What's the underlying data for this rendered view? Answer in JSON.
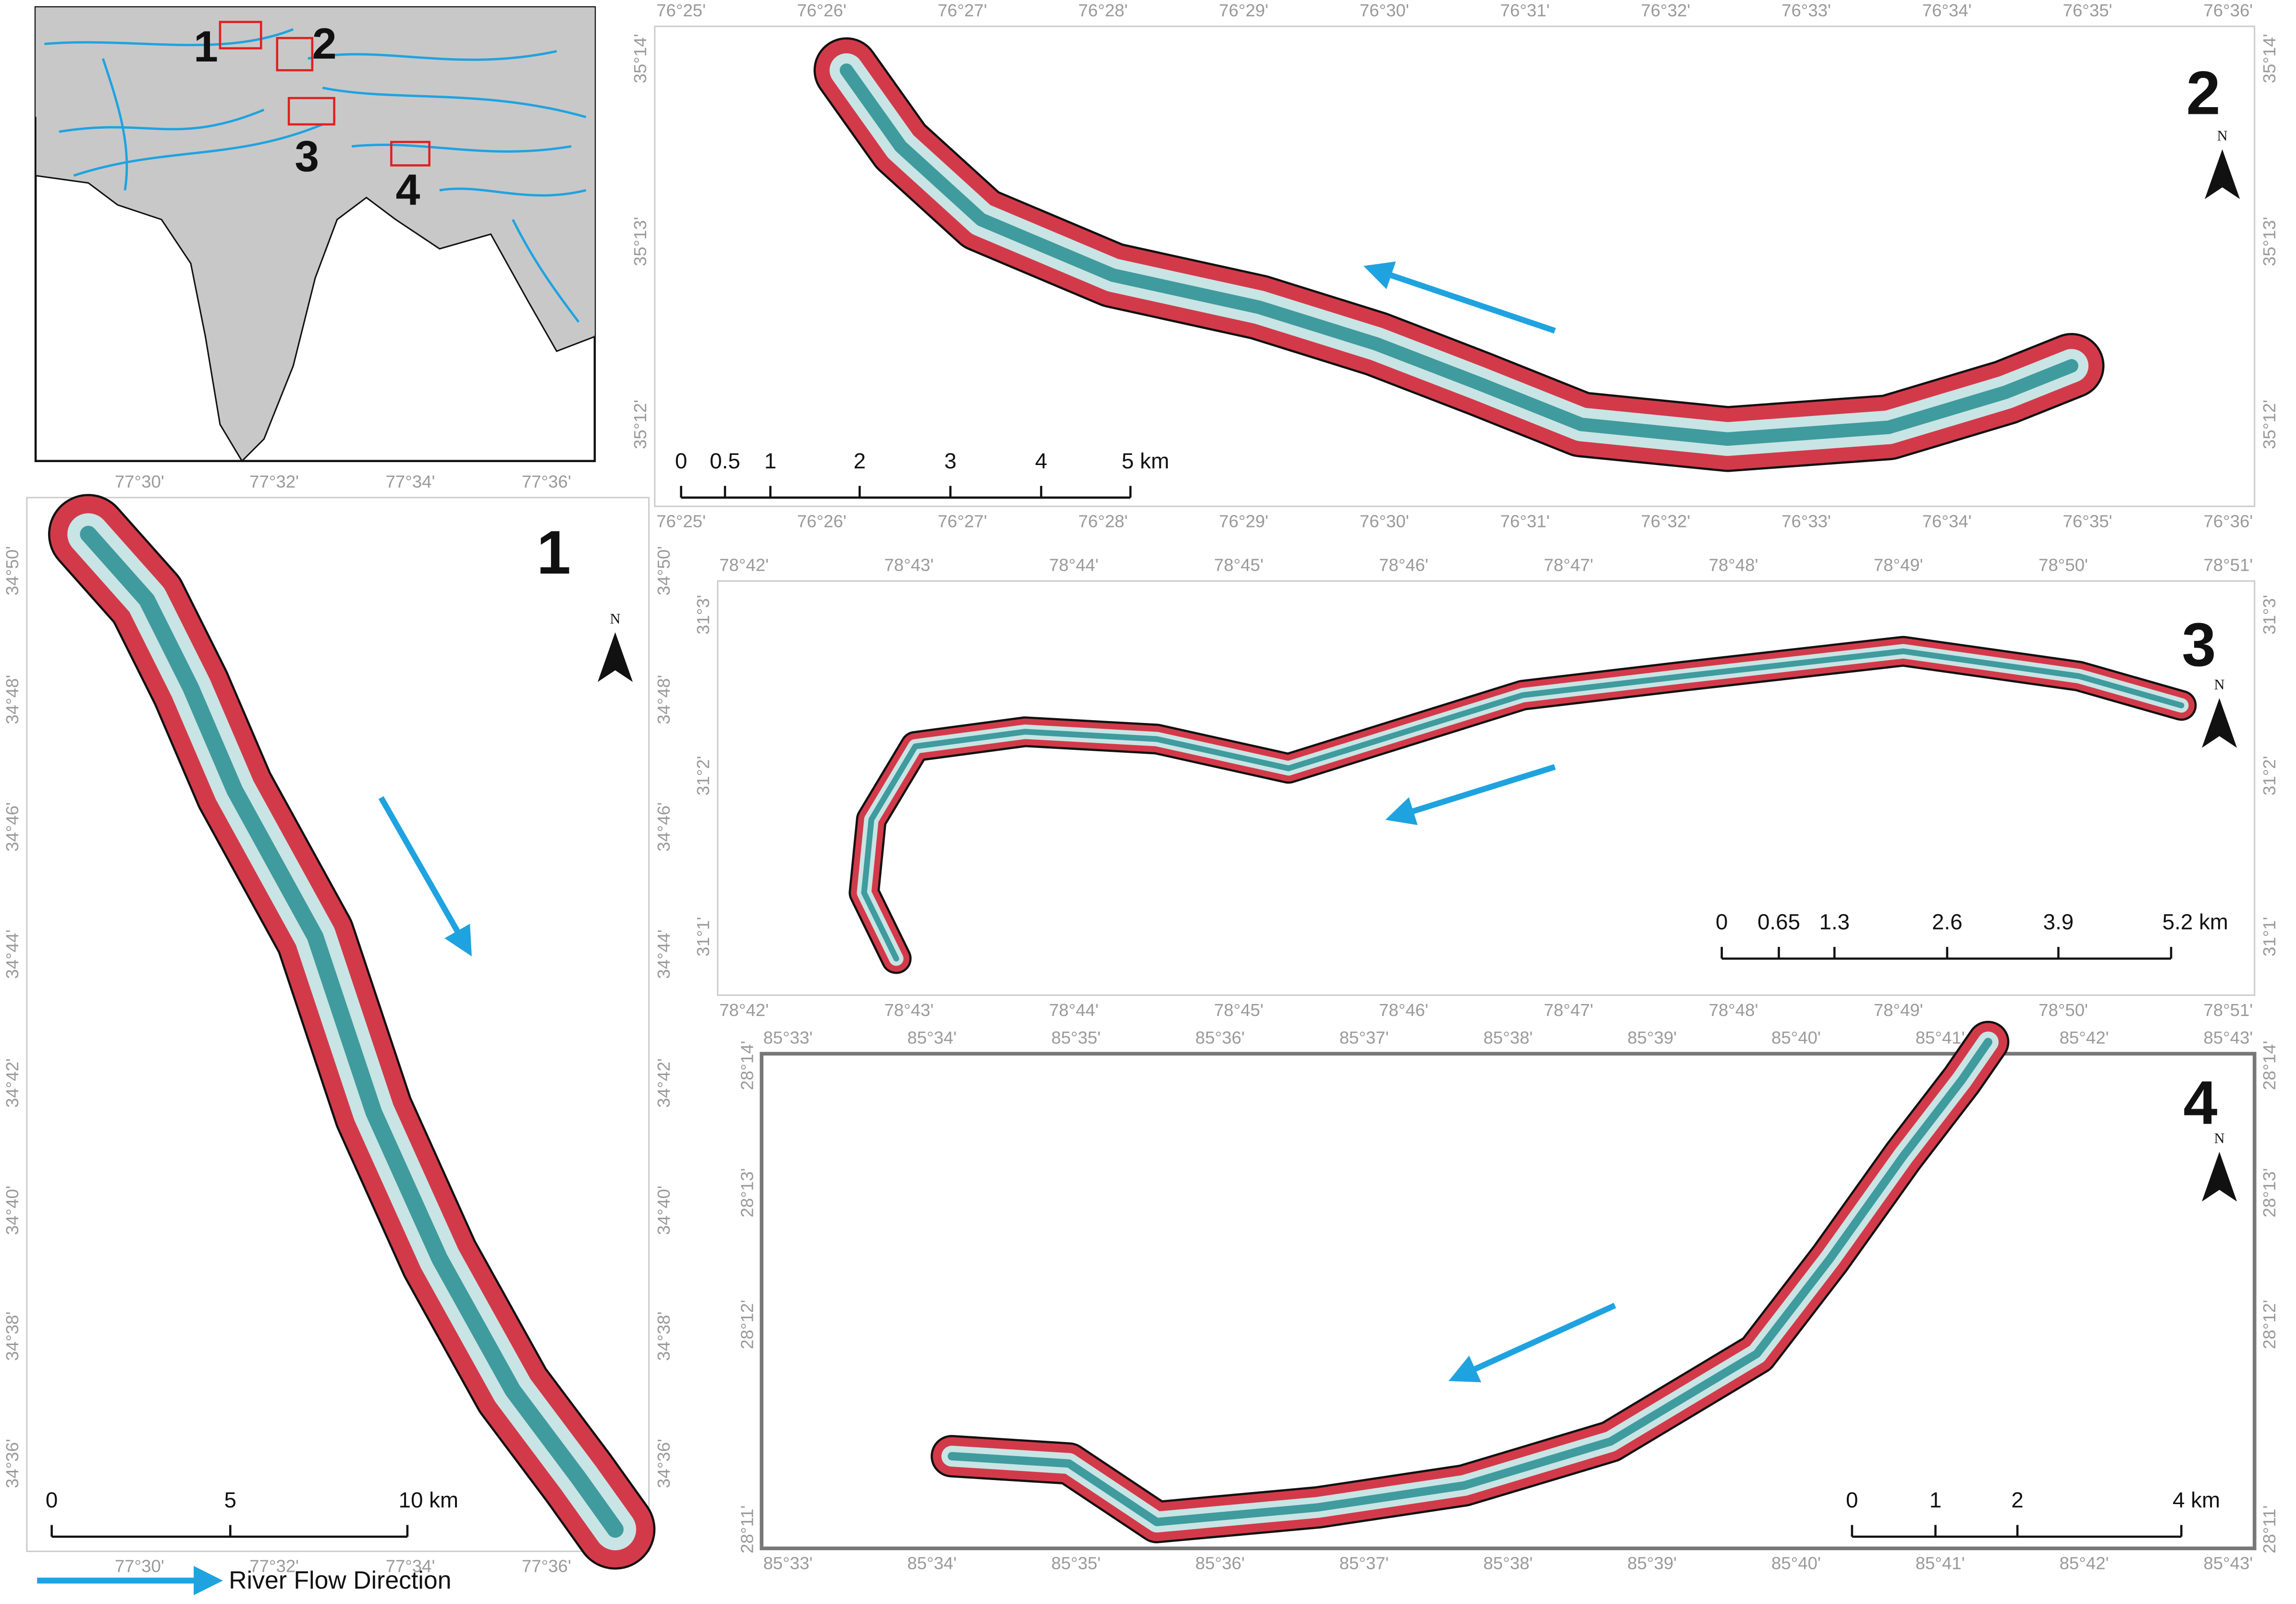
{
  "inset": {
    "labels": [
      "1",
      "2",
      "3",
      "4"
    ]
  },
  "panels": [
    {
      "label": "1",
      "north": "N",
      "lon_ticks": [
        "77°30'",
        "77°32'",
        "77°34'",
        "77°36'"
      ],
      "lat_ticks": [
        "34°50'",
        "34°48'",
        "34°46'",
        "34°44'",
        "34°42'",
        "34°40'",
        "34°38'",
        "34°36'"
      ],
      "scale_labels": [
        "0",
        "5",
        "10 km"
      ]
    },
    {
      "label": "2",
      "north": "N",
      "lon_ticks": [
        "76°25'",
        "76°26'",
        "76°27'",
        "76°28'",
        "76°29'",
        "76°30'",
        "76°31'",
        "76°32'",
        "76°33'",
        "76°34'",
        "76°35'",
        "76°36'"
      ],
      "lat_ticks": [
        "35°14'",
        "35°13'",
        "35°12'"
      ],
      "scale_labels": [
        "0",
        "0.5",
        "1",
        "2",
        "3",
        "4",
        "5 km"
      ]
    },
    {
      "label": "3",
      "north": "N",
      "lon_ticks": [
        "78°42'",
        "78°43'",
        "78°44'",
        "78°45'",
        "78°46'",
        "78°47'",
        "78°48'",
        "78°49'",
        "78°50'",
        "78°51'"
      ],
      "lat_ticks": [
        "31°3'",
        "31°2'",
        "31°1'"
      ],
      "scale_labels": [
        "0",
        "0.65",
        "1.3",
        "2.6",
        "3.9",
        "5.2 km"
      ]
    },
    {
      "label": "4",
      "north": "N",
      "lon_ticks": [
        "85°33'",
        "85°34'",
        "85°35'",
        "85°36'",
        "85°37'",
        "85°38'",
        "85°39'",
        "85°40'",
        "85°41'",
        "85°42'",
        "85°43'"
      ],
      "lat_ticks": [
        "28°14'",
        "28°13'",
        "28°12'",
        "28°11'"
      ],
      "scale_labels": [
        "0",
        "1",
        "2",
        "4 km"
      ]
    }
  ],
  "legend": {
    "label": "River Flow Direction"
  }
}
